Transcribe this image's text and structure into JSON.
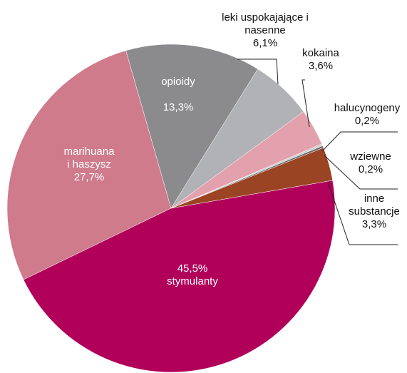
{
  "chart_data": {
    "type": "pie",
    "categories": [
      "opioidy",
      "leki uspokajające i nasenne",
      "kokaina",
      "halucynogeny",
      "wziewne",
      "inne substancje",
      "stymulanty",
      "marihuana i haszysz"
    ],
    "values": [
      13.3,
      6.1,
      3.6,
      0.2,
      0.2,
      3.3,
      45.5,
      27.7
    ],
    "value_labels": [
      "13,3%",
      "6,1%",
      "3,6%",
      "0,2%",
      "0,2%",
      "3,3%",
      "45,5%",
      "27,7%"
    ],
    "colors": [
      "#8b8b8d",
      "#b1b2b5",
      "#e3a0ad",
      "#cfcfcf",
      "#6b6b6b",
      "#9a4424",
      "#b1005a",
      "#cf7b8c"
    ]
  }
}
